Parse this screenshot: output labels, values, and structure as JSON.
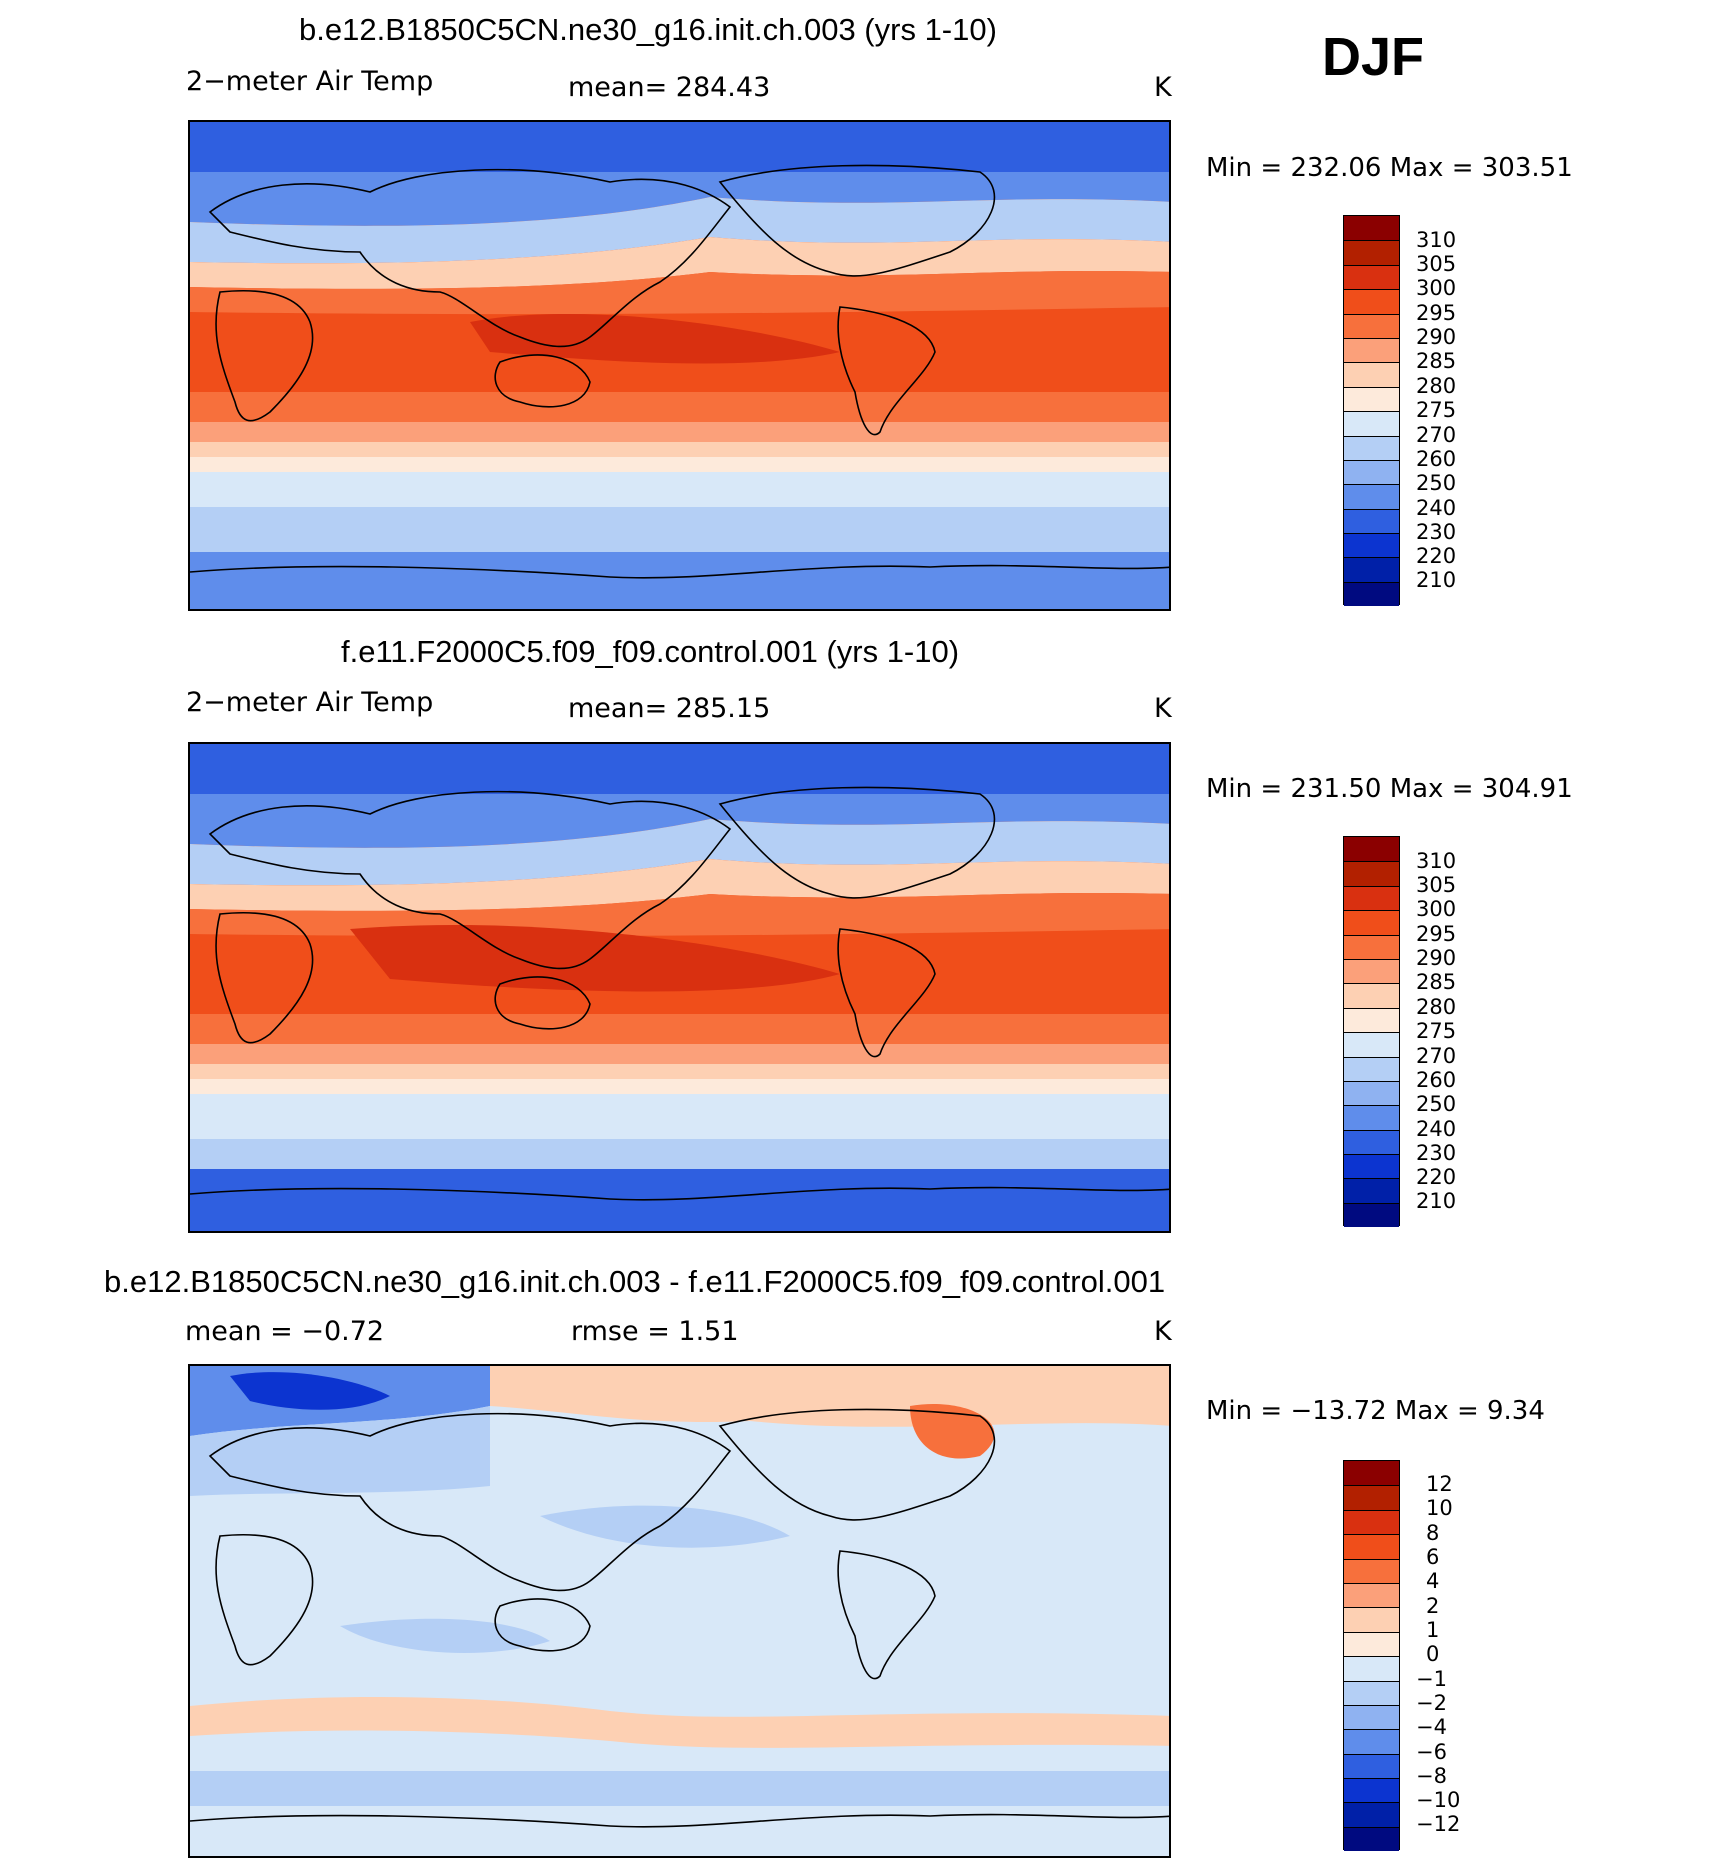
{
  "season": "DJF",
  "panels": [
    {
      "title": "b.e12.B1850C5CN.ne30_g16.init.ch.003 (yrs 1-10)",
      "variable": "2−meter Air Temp",
      "stat": "mean=  284.43",
      "units": "K",
      "minmax": "Min  =  232.06  Max  =  303.51"
    },
    {
      "title": "f.e11.F2000C5.f09_f09.control.001 (yrs 1-10)",
      "variable": "2−meter Air Temp",
      "stat": "mean=  285.15",
      "units": "K",
      "minmax": "Min  =  231.50  Max  =  304.91"
    },
    {
      "title": "b.e12.B1850C5CN.ne30_g16.init.ch.003 - f.e11.F2000C5.f09_f09.control.001",
      "stat_mean": "mean  =    −0.72",
      "stat_rmse": "rmse  =     1.51",
      "units": "K",
      "minmax": "Min  =  −13.72  Max  =     9.34"
    }
  ],
  "colors": {
    "temp_levels": [
      "#8b0000",
      "#b22000",
      "#d93010",
      "#f04e1a",
      "#f7703c",
      "#fba07a",
      "#fdd0b3",
      "#fdeadb",
      "#d8e8f8",
      "#b4cff5",
      "#8fb2f1",
      "#5f8deb",
      "#2f5fe0",
      "#0c34d0",
      "#0020a8",
      "#000a80"
    ],
    "diff_levels": [
      "#8b0000",
      "#b22000",
      "#d93010",
      "#f04e1a",
      "#f7703c",
      "#fba07a",
      "#fdd0b3",
      "#fdeadb",
      "#d8e8f8",
      "#b4cff5",
      "#8fb2f1",
      "#5f8deb",
      "#2f5fe0",
      "#0c34d0",
      "#0020a8",
      "#000a80"
    ]
  },
  "chart_data": [
    {
      "type": "heatmap",
      "title": "b.e12.B1850C5CN.ne30_g16.init.ch.003 (yrs 1-10)",
      "variable": "2-meter Air Temp",
      "units": "K",
      "mean": 284.43,
      "min": 232.06,
      "max": 303.51,
      "colorbar_ticks": [
        "310",
        "305",
        "300",
        "295",
        "290",
        "285",
        "280",
        "275",
        "270",
        "260",
        "250",
        "240",
        "230",
        "220",
        "210"
      ]
    },
    {
      "type": "heatmap",
      "title": "f.e11.F2000C5.f09_f09.control.001 (yrs 1-10)",
      "variable": "2-meter Air Temp",
      "units": "K",
      "mean": 285.15,
      "min": 231.5,
      "max": 304.91,
      "colorbar_ticks": [
        "310",
        "305",
        "300",
        "295",
        "290",
        "285",
        "280",
        "275",
        "270",
        "260",
        "250",
        "240",
        "230",
        "220",
        "210"
      ]
    },
    {
      "type": "heatmap",
      "title": "b.e12.B1850C5CN.ne30_g16.init.ch.003 - f.e11.F2000C5.f09_f09.control.001",
      "units": "K",
      "mean": -0.72,
      "rmse": 1.51,
      "min": -13.72,
      "max": 9.34,
      "colorbar_ticks": [
        "12",
        "10",
        "8",
        "6",
        "4",
        "2",
        "1",
        "0",
        "−1",
        "−2",
        "−4",
        "−6",
        "−8",
        "−10",
        "−12"
      ]
    }
  ]
}
